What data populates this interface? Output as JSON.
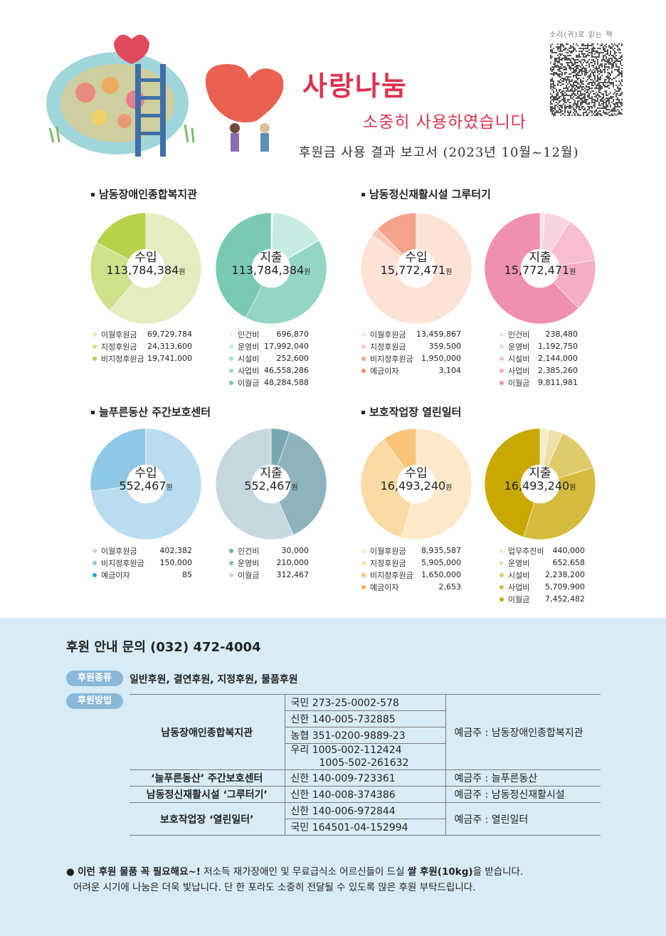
{
  "header": {
    "title": "사랑나눔",
    "subtitle": "소중히 사용하였습니다",
    "report": "후원금 사용 결과 보고서 (2023년 10월~12월)",
    "qr_label": "소리(귀)로 읽는 책"
  },
  "sections": [
    {
      "title": "남동장애인종합복지관",
      "income": {
        "label": "수입",
        "total": "113,784,384",
        "unit": "원",
        "items": [
          {
            "name": "이월후원금",
            "amount": "69,729,784",
            "value": 69729784,
            "color": "#e3edbf"
          },
          {
            "name": "지정후원금",
            "amount": "24,313,600",
            "value": 24313600,
            "color": "#cfe08a"
          },
          {
            "name": "비지정후원금",
            "amount": "19,741,000",
            "value": 19741000,
            "color": "#b5d24a"
          }
        ]
      },
      "expense": {
        "label": "지출",
        "total": "113,784,384",
        "unit": "원",
        "items": [
          {
            "name": "인건비",
            "amount": "696,870",
            "value": 696870,
            "color": "#e6f5f0"
          },
          {
            "name": "운영비",
            "amount": "17,992,040",
            "value": 17992040,
            "color": "#c6ebe2"
          },
          {
            "name": "시설비",
            "amount": "252,600",
            "value": 252600,
            "color": "#addfd3"
          },
          {
            "name": "사업비",
            "amount": "46,558,286",
            "value": 46558286,
            "color": "#93d6c6"
          },
          {
            "name": "이월금",
            "amount": "48,284,588",
            "value": 48284588,
            "color": "#79c9b5"
          }
        ]
      }
    },
    {
      "title": "남동정신재활시설 그루터기",
      "income": {
        "label": "수입",
        "total": "15,772,471",
        "unit": "원",
        "items": [
          {
            "name": "이월후원금",
            "amount": "13,459,867",
            "value": 13459867,
            "color": "#fde2d6"
          },
          {
            "name": "지정후원금",
            "amount": "359,500",
            "value": 359500,
            "color": "#fbc9b6"
          },
          {
            "name": "비지정후원금",
            "amount": "1,950,000",
            "value": 1950000,
            "color": "#f5a38a"
          },
          {
            "name": "예금이자",
            "amount": "3,104",
            "value": 3104,
            "color": "#f28e6e"
          }
        ]
      },
      "expense": {
        "label": "지출",
        "total": "15,772,471",
        "unit": "원",
        "items": [
          {
            "name": "인건비",
            "amount": "238,480",
            "value": 238480,
            "color": "#fbe3ea"
          },
          {
            "name": "운영비",
            "amount": "1,192,750",
            "value": 1192750,
            "color": "#f9d3df"
          },
          {
            "name": "시설비",
            "amount": "2,144,000",
            "value": 2144000,
            "color": "#f7bdd0"
          },
          {
            "name": "사업비",
            "amount": "2,385,260",
            "value": 2385260,
            "color": "#f4aec6"
          },
          {
            "name": "이월금",
            "amount": "9,811,981",
            "value": 9811981,
            "color": "#ef8fb1"
          }
        ]
      }
    },
    {
      "title": "늘푸른동산 주간보호센터",
      "income": {
        "label": "수입",
        "total": "552,467",
        "unit": "원",
        "items": [
          {
            "name": "이월후원금",
            "amount": "402,382",
            "value": 402382,
            "color": "#b9dcef"
          },
          {
            "name": "비지정후원금",
            "amount": "150,000",
            "value": 150000,
            "color": "#8ec8e6"
          },
          {
            "name": "예금이자",
            "amount": "85",
            "value": 85,
            "color": "#2aa3d6"
          }
        ]
      },
      "expense": {
        "label": "지출",
        "total": "552,467",
        "unit": "원",
        "items": [
          {
            "name": "인건비",
            "amount": "30,000",
            "value": 30000,
            "color": "#78a9b3"
          },
          {
            "name": "운영비",
            "amount": "210,000",
            "value": 210000,
            "color": "#8db3bd"
          },
          {
            "name": "이월금",
            "amount": "312,467",
            "value": 312467,
            "color": "#c5d8e0"
          }
        ]
      }
    },
    {
      "title": "보호작업장 열린일터",
      "income": {
        "label": "수입",
        "total": "16,493,240",
        "unit": "원",
        "items": [
          {
            "name": "이월후원금",
            "amount": "8,935,587",
            "value": 8935587,
            "color": "#fde9c9"
          },
          {
            "name": "지정후원금",
            "amount": "5,905,000",
            "value": 5905000,
            "color": "#fcdaa6"
          },
          {
            "name": "비지정후원금",
            "amount": "1,650,000",
            "value": 1650000,
            "color": "#fac47a"
          },
          {
            "name": "예금이자",
            "amount": "2,653",
            "value": 2653,
            "color": "#f7ae4f"
          }
        ]
      },
      "expense": {
        "label": "지출",
        "total": "16,493,240",
        "unit": "원",
        "items": [
          {
            "name": "업무추진비",
            "amount": "440,000",
            "value": 440000,
            "color": "#f3ecc6"
          },
          {
            "name": "운영비",
            "amount": "652,658",
            "value": 652658,
            "color": "#ece0a6"
          },
          {
            "name": "시설비",
            "amount": "2,238,200",
            "value": 2238200,
            "color": "#dfcb6b"
          },
          {
            "name": "사업비",
            "amount": "5,709,900",
            "value": 5709900,
            "color": "#d4bb3d"
          },
          {
            "name": "이월금",
            "amount": "7,452,482",
            "value": 7452482,
            "color": "#c9a900"
          }
        ]
      }
    }
  ],
  "support": {
    "contact": "후원 안내 문의 (032) 472-4004",
    "type_tag": "후원종류",
    "types": "일반후원, 결연후원, 지정후원, 물품후원",
    "method_tag": "후원방법",
    "accounts": [
      {
        "org": "남동장애인종합복지관",
        "numbers": [
          "국민 273-25-0002-578",
          "신한 140-005-732885",
          "농협 351-0200-9889-23",
          "우리 1005-002-112424\n         1005-502-261632"
        ],
        "holder": "예금주 : 남동장애인종합복지관"
      },
      {
        "org": "‘늘푸른동산’ 주간보호센터",
        "numbers": [
          "신한 140-009-723361"
        ],
        "holder": "예금주 : 늘푸른동산"
      },
      {
        "org": "남동정신재활시설 ‘그루터기’",
        "numbers": [
          "신한 140-008-374386"
        ],
        "holder": "예금주 : 남동정신재활시설"
      },
      {
        "org": "보호작업장 ‘열린일터’",
        "numbers": [
          "신한 140-006-972844",
          "국민 164501-04-152994"
        ],
        "holder": "예금주 : 열린일터"
      }
    ],
    "note_bold1": "이런 후원 물품 꼭 필요해요~!",
    "note_text1": " 저소득 재가장애인 및 무료급식소 어르신들이 드실 ",
    "note_bold2": "쌀 후원(10kg)",
    "note_text2": "을 받습니다.",
    "note_line2": "어려운 시기에 나눔은 더욱 빛납니다. 단 한 포라도 소중히 전달될 수 있도록 많은 후원 부탁드립니다."
  }
}
